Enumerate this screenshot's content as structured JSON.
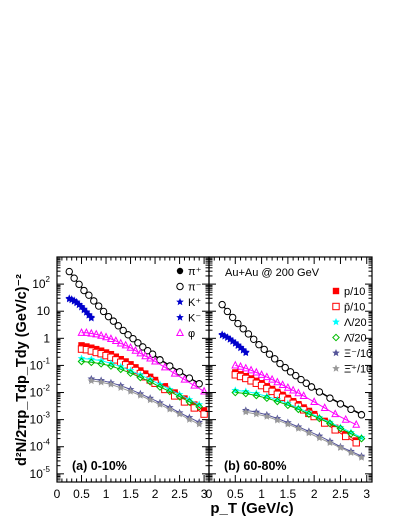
{
  "chart_data": {
    "type": "scatter",
    "y_scale": "log",
    "ylim": [
      5e-06,
      1000
    ],
    "y_tick_labels": [
      "10^{-5}",
      "10^{-4}",
      "10^{-3}",
      "10^{-2}",
      "10^{-1}",
      "1",
      "10",
      "10^{2}"
    ],
    "ylabel": "d²N/2πp_Tdp_Tdy (GeV/c)⁻²",
    "xlabel": "p_T (GeV/c)",
    "xlim": [
      0,
      3.1
    ],
    "x_tick_labels": [
      "0",
      "0.5",
      "1",
      "1.5",
      "2",
      "2.5",
      "3"
    ],
    "grid": false,
    "panels": [
      {
        "id": "a",
        "label": "(a) 0-10%",
        "legend_position": "top-right",
        "series": [
          {
            "name": "π⁺",
            "marker": "filled-circle",
            "color": "#000000",
            "x": [
              0.25,
              0.35,
              0.45,
              0.55,
              0.65,
              0.75,
              0.85,
              0.95,
              1.05,
              1.15,
              1.25,
              1.35,
              1.45,
              1.55,
              1.65,
              1.75,
              1.85,
              1.95,
              2.1,
              2.3,
              2.5,
              2.7,
              2.9
            ],
            "y": [
              300,
              170,
              100,
              60,
              40,
              25,
              16,
              10,
              6.5,
              4.5,
              3,
              2,
              1.4,
              1,
              0.7,
              0.5,
              0.36,
              0.27,
              0.17,
              0.1,
              0.06,
              0.035,
              0.022
            ]
          },
          {
            "name": "π⁻",
            "marker": "open-circle",
            "color": "#000000",
            "x": [
              0.25,
              0.35,
              0.45,
              0.55,
              0.65,
              0.75,
              0.85,
              0.95,
              1.05,
              1.15,
              1.25,
              1.35,
              1.45,
              1.55,
              1.65,
              1.75,
              1.85,
              1.95,
              2.1,
              2.3,
              2.5,
              2.7,
              2.9
            ],
            "y": [
              290,
              165,
              98,
              58,
              39,
              24,
              15.5,
              9.8,
              6.3,
              4.3,
              2.9,
              1.95,
              1.35,
              0.97,
              0.68,
              0.48,
              0.35,
              0.26,
              0.16,
              0.095,
              0.058,
              0.034,
              0.021
            ]
          },
          {
            "name": "K⁺",
            "marker": "filled-star",
            "color": "#0000cc",
            "x": [
              0.25,
              0.3,
              0.35,
              0.4,
              0.45,
              0.5,
              0.55,
              0.6,
              0.65,
              0.7
            ],
            "y": [
              30,
              28,
              25,
              22,
              18,
              15,
              12,
              9.5,
              7.5,
              6
            ]
          },
          {
            "name": "K⁻",
            "marker": "filled-star",
            "color": "#0000cc",
            "x": [
              0.25,
              0.3,
              0.35,
              0.4,
              0.45,
              0.5,
              0.55,
              0.6,
              0.65,
              0.7
            ],
            "y": [
              28,
              26,
              23,
              20,
              17,
              14,
              11,
              9,
              7,
              5.5
            ]
          },
          {
            "name": "φ",
            "marker": "open-triangle",
            "color": "#ff00ff",
            "x": [
              0.5,
              0.6,
              0.7,
              0.8,
              0.9,
              1.0,
              1.1,
              1.2,
              1.3,
              1.4,
              1.5,
              1.6,
              1.7,
              1.8,
              1.9,
              2.0,
              2.2,
              2.4,
              2.6,
              2.8,
              3.0
            ],
            "y": [
              1.6,
              1.6,
              1.5,
              1.4,
              1.25,
              1.1,
              0.95,
              0.8,
              0.65,
              0.55,
              0.45,
              0.35,
              0.28,
              0.22,
              0.18,
              0.14,
              0.085,
              0.05,
              0.03,
              0.018,
              0.011
            ]
          },
          {
            "name": "p/10",
            "marker": "filled-square",
            "color": "#ff0000",
            "x": [
              0.5,
              0.6,
              0.7,
              0.8,
              0.9,
              1.0,
              1.1,
              1.2,
              1.3,
              1.4,
              1.5,
              1.6,
              1.7,
              1.8,
              1.9,
              2.0,
              2.2,
              2.4,
              2.6,
              2.8,
              3.0
            ],
            "y": [
              0.55,
              0.5,
              0.45,
              0.4,
              0.35,
              0.3,
              0.26,
              0.21,
              0.17,
              0.14,
              0.11,
              0.085,
              0.065,
              0.05,
              0.038,
              0.029,
              0.017,
              0.01,
              0.006,
              0.0036,
              0.0022
            ]
          },
          {
            "name": "p̄/10",
            "marker": "open-square",
            "color": "#ff0000",
            "x": [
              0.5,
              0.6,
              0.7,
              0.8,
              0.9,
              1.0,
              1.1,
              1.2,
              1.3,
              1.4,
              1.5,
              1.6,
              1.7,
              1.8,
              1.9,
              2.0,
              2.2,
              2.4,
              2.6,
              2.8,
              3.0
            ],
            "y": [
              0.4,
              0.38,
              0.34,
              0.3,
              0.27,
              0.23,
              0.2,
              0.16,
              0.13,
              0.105,
              0.083,
              0.065,
              0.05,
              0.038,
              0.029,
              0.022,
              0.013,
              0.0075,
              0.0045,
              0.0027,
              0.0016
            ]
          },
          {
            "name": "Λ/20",
            "marker": "filled-star",
            "color": "#00ffff",
            "x": [
              0.5,
              0.7,
              0.9,
              1.1,
              1.3,
              1.5,
              1.7,
              1.9,
              2.1,
              2.3,
              2.5,
              2.7,
              2.9
            ],
            "y": [
              0.18,
              0.17,
              0.15,
              0.12,
              0.09,
              0.065,
              0.045,
              0.03,
              0.02,
              0.013,
              0.0085,
              0.0055,
              0.0036
            ]
          },
          {
            "name": "Λ̄/20",
            "marker": "open-diamond",
            "color": "#00bb00",
            "x": [
              0.5,
              0.7,
              0.9,
              1.1,
              1.3,
              1.5,
              1.7,
              1.9,
              2.1,
              2.3,
              2.5,
              2.7,
              2.9
            ],
            "y": [
              0.14,
              0.13,
              0.115,
              0.095,
              0.072,
              0.052,
              0.036,
              0.025,
              0.016,
              0.011,
              0.007,
              0.0045,
              0.003
            ]
          },
          {
            "name": "Ξ⁻/10",
            "marker": "filled-star",
            "color": "#555599",
            "x": [
              0.7,
              0.9,
              1.1,
              1.3,
              1.5,
              1.7,
              1.9,
              2.1,
              2.3,
              2.5,
              2.7,
              2.9
            ],
            "y": [
              0.032,
              0.028,
              0.023,
              0.018,
              0.013,
              0.009,
              0.0062,
              0.0042,
              0.0028,
              0.0018,
              0.0012,
              0.0008
            ]
          },
          {
            "name": "Ξ̄⁺/10",
            "marker": "filled-star",
            "color": "#999999",
            "x": [
              0.7,
              0.9,
              1.1,
              1.3,
              1.5,
              1.7,
              1.9,
              2.1,
              2.3,
              2.5,
              2.7,
              2.9
            ],
            "y": [
              0.027,
              0.024,
              0.02,
              0.015,
              0.011,
              0.0078,
              0.0053,
              0.0036,
              0.0024,
              0.0016,
              0.001,
              0.00068
            ]
          }
        ]
      },
      {
        "id": "b",
        "label": "(b) 60-80%",
        "annotation": "Au+Au @ 200 GeV",
        "legend_position": "top-right",
        "series": [
          {
            "name": "π⁺",
            "marker": "filled-circle",
            "color": "#000000",
            "x": [
              0.25,
              0.35,
              0.45,
              0.55,
              0.65,
              0.75,
              0.85,
              0.95,
              1.05,
              1.15,
              1.25,
              1.35,
              1.45,
              1.55,
              1.65,
              1.75,
              1.85,
              1.95,
              2.1,
              2.3,
              2.5,
              2.7,
              2.9
            ],
            "y": [
              18,
              10,
              6,
              3.6,
              2.3,
              1.5,
              0.95,
              0.6,
              0.4,
              0.27,
              0.18,
              0.12,
              0.085,
              0.06,
              0.043,
              0.031,
              0.023,
              0.017,
              0.011,
              0.0065,
              0.004,
              0.0025,
              0.0016
            ]
          },
          {
            "name": "π⁻",
            "marker": "open-circle",
            "color": "#000000",
            "x": [
              0.25,
              0.35,
              0.45,
              0.55,
              0.65,
              0.75,
              0.85,
              0.95,
              1.05,
              1.15,
              1.25,
              1.35,
              1.45,
              1.55,
              1.65,
              1.75,
              1.85,
              1.95,
              2.1,
              2.3,
              2.5,
              2.7,
              2.9
            ],
            "y": [
              17.5,
              9.8,
              5.9,
              3.5,
              2.25,
              1.45,
              0.92,
              0.58,
              0.39,
              0.26,
              0.175,
              0.117,
              0.083,
              0.058,
              0.042,
              0.03,
              0.022,
              0.016,
              0.0105,
              0.0062,
              0.0038,
              0.0024,
              0.0015
            ]
          },
          {
            "name": "K⁺",
            "marker": "filled-star",
            "color": "#0000cc",
            "x": [
              0.25,
              0.3,
              0.35,
              0.4,
              0.45,
              0.5,
              0.55,
              0.6,
              0.65,
              0.7
            ],
            "y": [
              1.4,
              1.25,
              1.1,
              0.95,
              0.8,
              0.68,
              0.57,
              0.47,
              0.38,
              0.31
            ]
          },
          {
            "name": "K⁻",
            "marker": "filled-star",
            "color": "#0000cc",
            "x": [
              0.25,
              0.3,
              0.35,
              0.4,
              0.45,
              0.5,
              0.55,
              0.6,
              0.65,
              0.7
            ],
            "y": [
              1.3,
              1.18,
              1.05,
              0.9,
              0.76,
              0.64,
              0.53,
              0.44,
              0.36,
              0.29
            ]
          },
          {
            "name": "φ",
            "marker": "open-triangle",
            "color": "#ff00ff",
            "x": [
              0.5,
              0.6,
              0.7,
              0.8,
              0.9,
              1.0,
              1.1,
              1.2,
              1.3,
              1.4,
              1.5,
              1.6,
              1.7,
              1.8,
              2.0,
              2.2,
              2.4,
              2.6,
              2.8
            ],
            "y": [
              0.1,
              0.09,
              0.078,
              0.066,
              0.055,
              0.045,
              0.037,
              0.03,
              0.024,
              0.019,
              0.015,
              0.012,
              0.0095,
              0.0075,
              0.0045,
              0.0027,
              0.0016,
              0.001,
              0.00065
            ]
          },
          {
            "name": "p/10",
            "marker": "filled-square",
            "color": "#ff0000",
            "x": [
              0.5,
              0.6,
              0.7,
              0.8,
              0.9,
              1.0,
              1.1,
              1.2,
              1.3,
              1.4,
              1.5,
              1.6,
              1.7,
              1.8,
              1.9,
              2.0,
              2.2,
              2.4,
              2.6,
              2.8
            ],
            "y": [
              0.055,
              0.047,
              0.04,
              0.033,
              0.027,
              0.022,
              0.017,
              0.0135,
              0.0105,
              0.0082,
              0.0063,
              0.0048,
              0.0037,
              0.0028,
              0.0021,
              0.0016,
              0.0009,
              0.0005,
              0.00029,
              0.00017
            ]
          },
          {
            "name": "p̄/10",
            "marker": "open-square",
            "color": "#ff0000",
            "x": [
              0.5,
              0.6,
              0.7,
              0.8,
              0.9,
              1.0,
              1.1,
              1.2,
              1.3,
              1.4,
              1.5,
              1.6,
              1.7,
              1.8,
              1.9,
              2.0,
              2.2,
              2.4,
              2.6,
              2.8
            ],
            "y": [
              0.045,
              0.039,
              0.033,
              0.027,
              0.022,
              0.018,
              0.014,
              0.011,
              0.0086,
              0.0067,
              0.0052,
              0.004,
              0.0031,
              0.0023,
              0.0017,
              0.0013,
              0.00075,
              0.00042,
              0.00024,
              0.00014
            ]
          },
          {
            "name": "Λ/20",
            "marker": "filled-star",
            "color": "#00ffff",
            "x": [
              0.5,
              0.7,
              0.9,
              1.1,
              1.3,
              1.5,
              1.7,
              1.9,
              2.1,
              2.3,
              2.5,
              2.7,
              2.9
            ],
            "y": [
              0.012,
              0.011,
              0.0092,
              0.0072,
              0.0054,
              0.0039,
              0.0027,
              0.0018,
              0.0012,
              0.0008,
              0.00052,
              0.00034,
              0.00022
            ]
          },
          {
            "name": "Λ̄/20",
            "marker": "open-diamond",
            "color": "#00bb00",
            "x": [
              0.5,
              0.7,
              0.9,
              1.1,
              1.3,
              1.5,
              1.7,
              1.9,
              2.1,
              2.3,
              2.5,
              2.7,
              2.9
            ],
            "y": [
              0.01,
              0.0092,
              0.0078,
              0.0062,
              0.0047,
              0.0034,
              0.0024,
              0.0016,
              0.0011,
              0.00072,
              0.00047,
              0.0003,
              0.0002
            ]
          },
          {
            "name": "Ξ⁻/10",
            "marker": "filled-star",
            "color": "#555599",
            "x": [
              0.7,
              0.9,
              1.1,
              1.3,
              1.5,
              1.7,
              1.9,
              2.1,
              2.3,
              2.5,
              2.7,
              2.9
            ],
            "y": [
              0.0022,
              0.0019,
              0.0015,
              0.0011,
              0.00078,
              0.00054,
              0.00037,
              0.00025,
              0.00016,
              0.0001,
              6.8e-05,
              4.5e-05
            ]
          },
          {
            "name": "Ξ̄⁺/10",
            "marker": "filled-star",
            "color": "#999999",
            "x": [
              0.7,
              0.9,
              1.1,
              1.3,
              1.5,
              1.7,
              1.9,
              2.1,
              2.3,
              2.5,
              2.7,
              2.9
            ],
            "y": [
              0.0019,
              0.0016,
              0.0013,
              0.00095,
              0.00068,
              0.00047,
              0.00032,
              0.00021,
              0.00014,
              9.2e-05,
              6e-05,
              4e-05
            ]
          }
        ]
      }
    ]
  }
}
